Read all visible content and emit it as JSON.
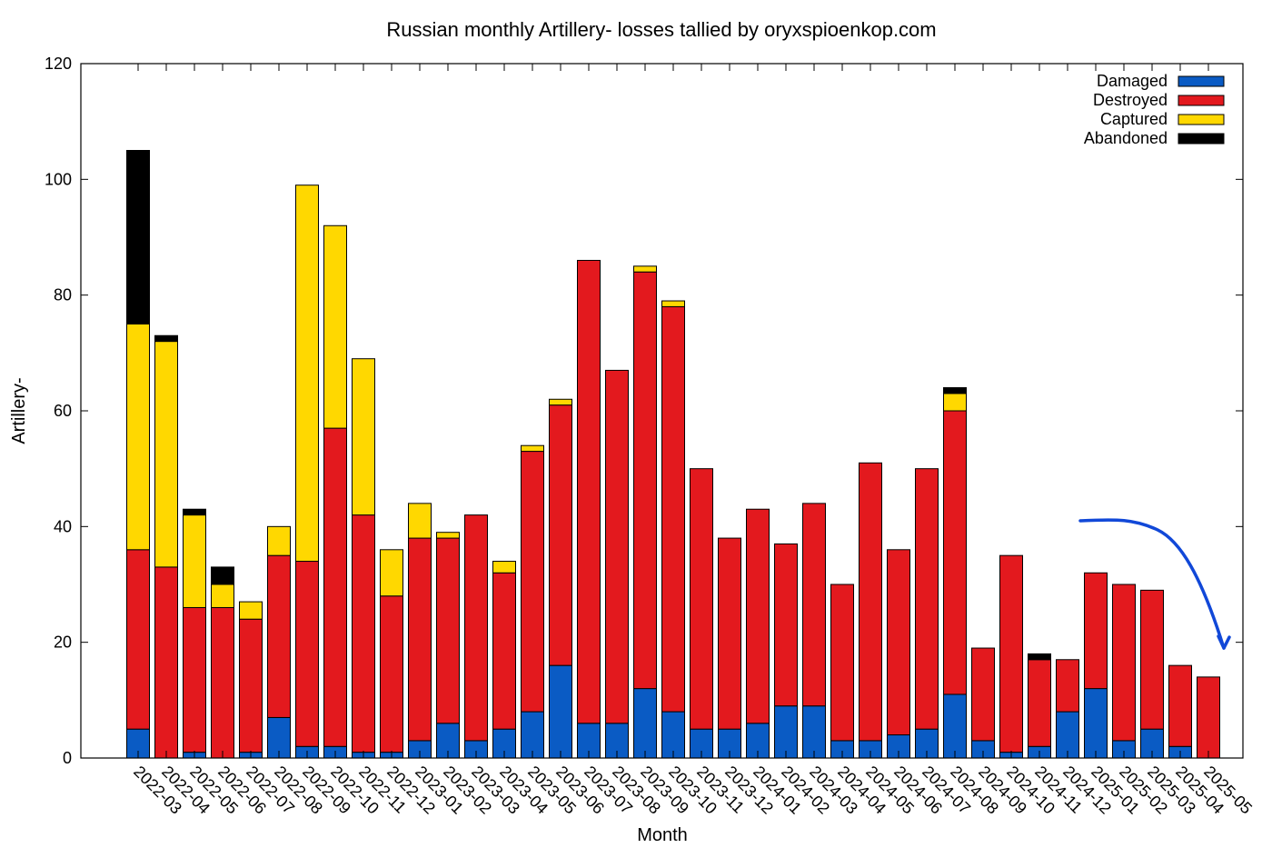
{
  "chart_data": {
    "type": "bar",
    "stacked": true,
    "title": "Russian monthly Artillery- losses tallied by oryxspioenkop.com",
    "xlabel": "Month",
    "ylabel": "Artillery-",
    "ylim": [
      0,
      120
    ],
    "yticks": [
      0,
      20,
      40,
      60,
      80,
      100,
      120
    ],
    "legend_position": "top-right",
    "categories": [
      "2022-03",
      "2022-04",
      "2022-05",
      "2022-06",
      "2022-07",
      "2022-08",
      "2022-09",
      "2022-10",
      "2022-11",
      "2022-12",
      "2023-01",
      "2023-02",
      "2023-03",
      "2023-04",
      "2023-05",
      "2023-06",
      "2023-07",
      "2023-08",
      "2023-09",
      "2023-10",
      "2023-11",
      "2023-12",
      "2024-01",
      "2024-02",
      "2024-03",
      "2024-04",
      "2024-05",
      "2024-06",
      "2024-07",
      "2024-08",
      "2024-09",
      "2024-10",
      "2024-11",
      "2024-12",
      "2025-01",
      "2025-02",
      "2025-03",
      "2025-04",
      "2025-05"
    ],
    "series": [
      {
        "name": "Damaged",
        "color": "#0a5bc4",
        "values": [
          5,
          0,
          1,
          0,
          1,
          7,
          2,
          2,
          1,
          1,
          3,
          6,
          3,
          5,
          8,
          16,
          6,
          6,
          12,
          8,
          5,
          5,
          6,
          9,
          9,
          3,
          3,
          4,
          5,
          11,
          3,
          1,
          2,
          8,
          12,
          3,
          5,
          2,
          0
        ]
      },
      {
        "name": "Destroyed",
        "color": "#e3191e",
        "values": [
          31,
          33,
          25,
          26,
          23,
          28,
          32,
          55,
          41,
          27,
          35,
          32,
          39,
          27,
          45,
          45,
          80,
          61,
          72,
          70,
          45,
          33,
          37,
          28,
          35,
          27,
          48,
          32,
          45,
          49,
          16,
          34,
          15,
          9,
          20,
          27,
          24,
          14,
          14
        ]
      },
      {
        "name": "Captured",
        "color": "#ffd800",
        "values": [
          39,
          39,
          16,
          4,
          3,
          5,
          65,
          35,
          27,
          8,
          6,
          1,
          0,
          2,
          1,
          1,
          0,
          0,
          1,
          1,
          0,
          0,
          0,
          0,
          0,
          0,
          0,
          0,
          0,
          3,
          0,
          0,
          0,
          0,
          0,
          0,
          0,
          0,
          0
        ]
      },
      {
        "name": "Abandoned",
        "color": "#000000",
        "values": [
          30,
          1,
          1,
          3,
          0,
          0,
          0,
          0,
          0,
          0,
          0,
          0,
          0,
          0,
          0,
          0,
          0,
          0,
          0,
          0,
          0,
          0,
          0,
          0,
          0,
          0,
          0,
          0,
          0,
          1,
          0,
          0,
          1,
          0,
          0,
          0,
          0,
          0,
          0
        ]
      }
    ],
    "annotation": {
      "type": "arrow",
      "color": "#1148d8",
      "from_category": "2024-12",
      "from_value": 41,
      "to_category": "2025-05",
      "to_value": 19
    }
  }
}
